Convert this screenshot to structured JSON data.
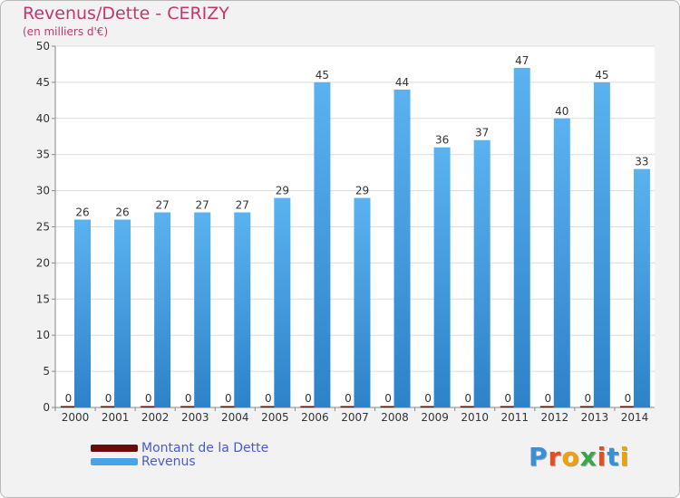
{
  "chart_data": {
    "type": "bar",
    "title": "Revenus/Dette - CERIZY",
    "subtitle": "(en milliers d'€)",
    "categories": [
      "2000",
      "2001",
      "2002",
      "2003",
      "2004",
      "2005",
      "2006",
      "2007",
      "2008",
      "2009",
      "2010",
      "2011",
      "2012",
      "2013",
      "2014"
    ],
    "series": [
      {
        "name": "Montant de la Dette",
        "color": "#6b0a0a",
        "values": [
          0,
          0,
          0,
          0,
          0,
          0,
          0,
          0,
          0,
          0,
          0,
          0,
          0,
          0,
          0
        ]
      },
      {
        "name": "Revenus",
        "color": "#4aa3e6",
        "values": [
          26,
          26,
          27,
          27,
          27,
          29,
          45,
          29,
          44,
          36,
          37,
          47,
          40,
          45,
          33
        ]
      }
    ],
    "ylim": [
      0,
      50
    ],
    "yticks": [
      0,
      5,
      10,
      15,
      20,
      25,
      30,
      35,
      40,
      45,
      50
    ],
    "grid": true,
    "legend": "bottom-left"
  },
  "brand": {
    "logo_letters": [
      "P",
      "r",
      "o",
      "x",
      "i",
      "t",
      "i"
    ],
    "logo_colors": [
      "#3a8fd8",
      "#e84e1b",
      "#f2a100",
      "#3aa64a",
      "#e84e1b",
      "#3a8fd8",
      "#f2a100"
    ]
  }
}
